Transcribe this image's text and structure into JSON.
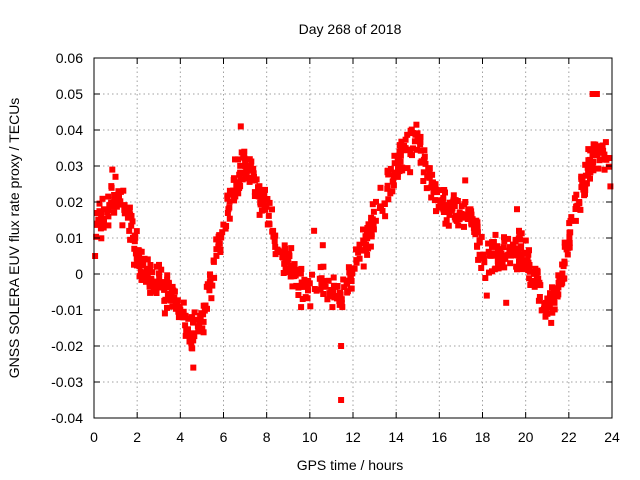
{
  "chart_data": {
    "type": "scatter",
    "title": "Day 268 of 2018",
    "xlabel": "GPS time / hours",
    "ylabel": "GNSS SOLERA EUV flux rate proxy / TECUs",
    "xlim": [
      0,
      24
    ],
    "ylim": [
      -0.04,
      0.06
    ],
    "xticks": [
      0,
      2,
      4,
      6,
      8,
      10,
      12,
      14,
      16,
      18,
      20,
      22,
      24
    ],
    "yticks": [
      -0.04,
      -0.03,
      -0.02,
      -0.01,
      0,
      0.01,
      0.02,
      0.03,
      0.04,
      0.05,
      0.06
    ],
    "ytick_labels": [
      "-0.04",
      "-0.03",
      "-0.02",
      "-0.01",
      "0",
      "0.01",
      "0.02",
      "0.03",
      "0.04",
      "0.05",
      "0.06"
    ],
    "grid": true,
    "marker": "square",
    "color": "#ff0000",
    "series": [
      {
        "x": [
          0.0,
          0.5,
          1.0,
          1.5,
          2.0,
          2.5,
          3.0,
          3.5,
          4.0,
          4.5,
          5.0,
          5.5,
          6.0,
          6.5,
          7.0,
          7.5,
          8.0,
          8.5,
          9.0,
          9.5,
          10.0,
          10.5,
          11.0,
          11.5,
          12.0,
          12.5,
          13.0,
          13.5,
          14.0,
          14.5,
          15.0,
          15.5,
          16.0,
          16.5,
          17.0,
          17.5,
          18.0,
          18.5,
          19.0,
          19.5,
          20.0,
          20.5,
          21.0,
          21.5,
          22.0,
          22.5,
          23.0,
          23.5,
          24.0
        ],
        "y": [
          0.015,
          0.017,
          0.021,
          0.018,
          0.005,
          -0.002,
          -0.004,
          -0.005,
          -0.01,
          -0.017,
          -0.013,
          0.0,
          0.013,
          0.024,
          0.031,
          0.025,
          0.017,
          0.008,
          0.003,
          -0.002,
          -0.005,
          -0.003,
          -0.004,
          -0.006,
          0.0,
          0.008,
          0.016,
          0.022,
          0.029,
          0.035,
          0.038,
          0.027,
          0.02,
          0.019,
          0.017,
          0.015,
          0.005,
          0.006,
          0.005,
          0.007,
          0.004,
          -0.002,
          -0.01,
          -0.005,
          0.01,
          0.022,
          0.03,
          0.035,
          0.028
        ]
      }
    ],
    "outliers": [
      {
        "x": 6.8,
        "y": 0.041
      },
      {
        "x": 11.45,
        "y": -0.035
      },
      {
        "x": 11.45,
        "y": -0.02
      },
      {
        "x": 0.85,
        "y": 0.029
      },
      {
        "x": 23.3,
        "y": 0.05
      },
      {
        "x": 23.1,
        "y": 0.05
      },
      {
        "x": 0.05,
        "y": 0.005
      },
      {
        "x": 4.6,
        "y": -0.026
      },
      {
        "x": 18.2,
        "y": -0.006
      },
      {
        "x": 19.1,
        "y": -0.008
      },
      {
        "x": 10.2,
        "y": 0.012
      },
      {
        "x": 10.6,
        "y": 0.008
      },
      {
        "x": 17.2,
        "y": 0.026
      },
      {
        "x": 19.6,
        "y": 0.018
      }
    ],
    "noise": 0.004,
    "density": 40
  }
}
